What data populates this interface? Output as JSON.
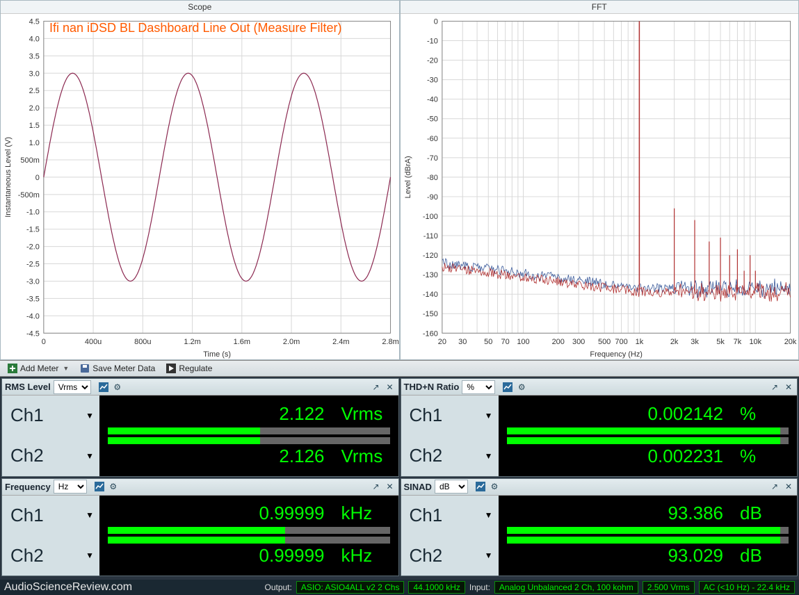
{
  "overlay_title": "Ifi nan iDSD BL Dashboard Line Out (Measure Filter)",
  "scope": {
    "title": "Scope",
    "xlabel": "Time (s)",
    "ylabel": "Instantaneous Level (V)",
    "xticks": [
      "0",
      "400u",
      "800u",
      "1.2m",
      "1.6m",
      "2.0m",
      "2.4m",
      "2.8m"
    ],
    "yticks": [
      "-4.5",
      "-4.0",
      "-3.5",
      "-3.0",
      "-2.5",
      "-2.0",
      "-1.5",
      "-1.0",
      "-500m",
      "0",
      "500m",
      "1.0",
      "1.5",
      "2.0",
      "2.5",
      "3.0",
      "3.5",
      "4.0",
      "4.5"
    ],
    "xlim": [
      0,
      0.003
    ],
    "ylim": [
      -4.5,
      4.5
    ],
    "amplitude": 3.0,
    "frequency_hz": 1000,
    "line_color": "#8b2850",
    "background_color": "#ffffff",
    "grid_color": "#d8d8d8",
    "label_fontsize": 11
  },
  "fft": {
    "title": "FFT",
    "xlabel": "Frequency (Hz)",
    "ylabel": "Level (dBrA)",
    "xlim": [
      20,
      20000
    ],
    "ylim": [
      -160,
      0
    ],
    "ytick_step": 10,
    "xticks": [
      "20",
      "30",
      "50",
      "70",
      "100",
      "200",
      "300",
      "500",
      "700",
      "1k",
      "2k",
      "3k",
      "5k",
      "7k",
      "10k",
      "20k"
    ],
    "yticks": [
      "0",
      "-10",
      "-20",
      "-30",
      "-40",
      "-50",
      "-60",
      "-70",
      "-80",
      "-90",
      "-100",
      "-110",
      "-120",
      "-130",
      "-140",
      "-150",
      "-160"
    ],
    "series_colors": {
      "ch1": "#3a5a9a",
      "ch2": "#b03030"
    },
    "fundamental_hz": 1000,
    "fundamental_db": 0,
    "noise_floor_db": -138,
    "noise_floor_low_db": -125,
    "harmonics": [
      {
        "hz": 2000,
        "db": -96
      },
      {
        "hz": 3000,
        "db": -102
      },
      {
        "hz": 4000,
        "db": -113
      },
      {
        "hz": 5000,
        "db": -111
      },
      {
        "hz": 6000,
        "db": -120
      },
      {
        "hz": 7000,
        "db": -117
      },
      {
        "hz": 8000,
        "db": -128
      },
      {
        "hz": 9000,
        "db": -120
      },
      {
        "hz": 10000,
        "db": -128
      }
    ],
    "background_color": "#ffffff",
    "grid_color": "#d8d8d8"
  },
  "toolbar": {
    "add_meter": "Add Meter",
    "save_meter": "Save Meter Data",
    "regulate": "Regulate"
  },
  "meters": {
    "rms": {
      "title": "RMS Level",
      "unit_select": "Vrms",
      "ch1": {
        "label": "Ch1",
        "value": "2.122",
        "unit": "Vrms",
        "bar_pct": 54
      },
      "ch2": {
        "label": "Ch2",
        "value": "2.126",
        "unit": "Vrms",
        "bar_pct": 54
      }
    },
    "thdn": {
      "title": "THD+N Ratio",
      "unit_select": "%",
      "ch1": {
        "label": "Ch1",
        "value": "0.002142",
        "unit": "%",
        "bar_pct": 97
      },
      "ch2": {
        "label": "Ch2",
        "value": "0.002231",
        "unit": "%",
        "bar_pct": 97
      }
    },
    "freq": {
      "title": "Frequency",
      "unit_select": "Hz",
      "ch1": {
        "label": "Ch1",
        "value": "0.99999",
        "unit": "kHz",
        "bar_pct": 63
      },
      "ch2": {
        "label": "Ch2",
        "value": "0.99999",
        "unit": "kHz",
        "bar_pct": 63
      }
    },
    "sinad": {
      "title": "SINAD",
      "unit_select": "dB",
      "ch1": {
        "label": "Ch1",
        "value": "93.386",
        "unit": "dB",
        "bar_pct": 97
      },
      "ch2": {
        "label": "Ch2",
        "value": "93.029",
        "unit": "dB",
        "bar_pct": 97
      }
    }
  },
  "status": {
    "watermark": "AudioScienceReview.com",
    "output_label": "Output:",
    "output_value": "ASIO: ASIO4ALL v2 2 Chs",
    "sample_rate": "44.1000 kHz",
    "input_label": "Input:",
    "input_value": "Analog Unbalanced 2 Ch, 100 kohm",
    "input_level": "2.500 Vrms",
    "coupling": "AC (<10 Hz) - 22.4 kHz"
  },
  "colors": {
    "panel_bg": "#d8e4e8",
    "readout_bg": "#000000",
    "readout_fg": "#00ff00",
    "bar_track": "#666666",
    "bar_fill": "#00ff00"
  }
}
